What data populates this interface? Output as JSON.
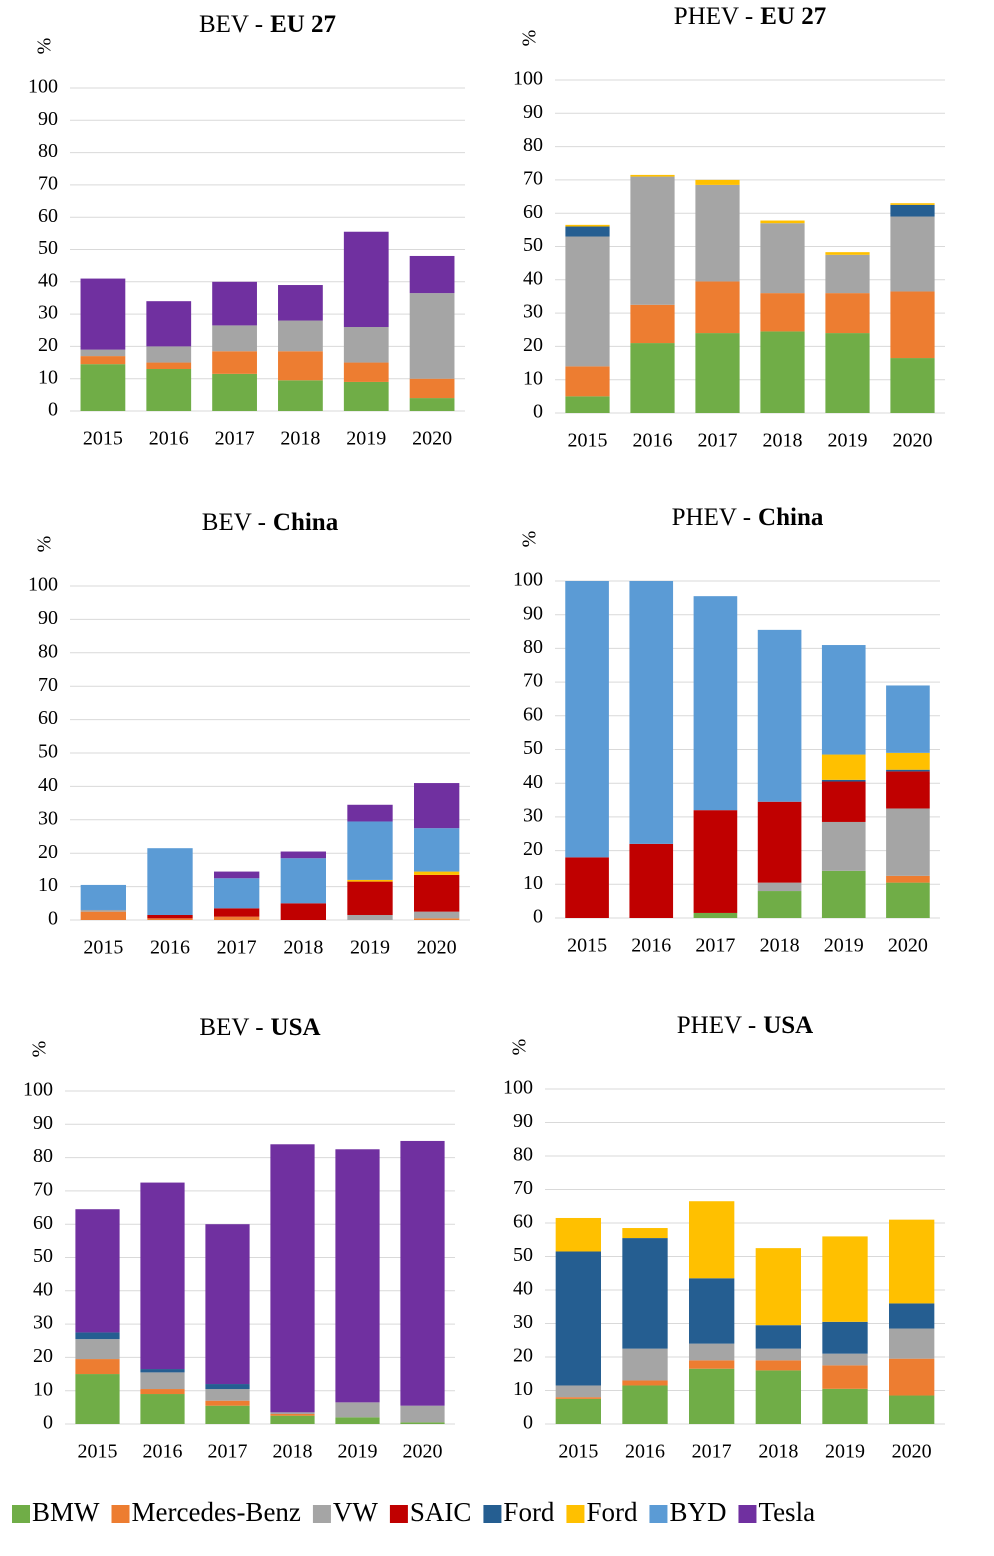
{
  "legend": {
    "entries": [
      {
        "name": "BMW",
        "color": "#70ad47"
      },
      {
        "name": "Mercedes-Benz",
        "color": "#ed7d31"
      },
      {
        "name": "VW",
        "color": "#a5a5a5"
      },
      {
        "name": "SAIC",
        "color": "#c00000"
      },
      {
        "name": "Ford",
        "color": "#255e91"
      },
      {
        "name": "Ford",
        "color": "#ffc000"
      },
      {
        "name": "BYD",
        "color": "#5b9bd5"
      },
      {
        "name": "Tesla",
        "color": "#7030a0"
      }
    ]
  },
  "chart_data": [
    {
      "type": "bar",
      "stacked": true,
      "title": [
        "BEV -",
        "EU 27"
      ],
      "y_label": "%",
      "categories": [
        "2015",
        "2016",
        "2017",
        "2018",
        "2019",
        "2020"
      ],
      "ylim": [
        0,
        100
      ],
      "yticks": [
        0,
        10,
        20,
        30,
        40,
        50,
        60,
        70,
        80,
        90,
        100
      ],
      "grid": true,
      "series": [
        {
          "values": [
            14.5,
            13,
            11.5,
            9.5,
            9,
            4
          ]
        },
        {
          "values": [
            2.5,
            2,
            7,
            9,
            6,
            6
          ]
        },
        {
          "values": [
            2,
            5,
            8,
            9.5,
            11,
            26.5
          ]
        },
        {
          "values": [
            0,
            0,
            0,
            0,
            0,
            0
          ]
        },
        {
          "values": [
            0,
            0,
            0,
            0,
            0,
            0
          ]
        },
        {
          "values": [
            0,
            0,
            0,
            0,
            0,
            0
          ]
        },
        {
          "values": [
            0,
            0,
            0,
            0,
            0,
            0
          ]
        },
        {
          "values": [
            22,
            14,
            13.5,
            11,
            29.5,
            11.5
          ]
        }
      ]
    },
    {
      "type": "bar",
      "stacked": true,
      "title": [
        "PHEV -",
        "EU 27"
      ],
      "y_label": "%",
      "categories": [
        "2015",
        "2016",
        "2017",
        "2018",
        "2019",
        "2020"
      ],
      "ylim": [
        0,
        100
      ],
      "yticks": [
        0,
        10,
        20,
        30,
        40,
        50,
        60,
        70,
        80,
        90,
        100
      ],
      "grid": true,
      "series": [
        {
          "values": [
            5,
            21,
            24,
            24.5,
            24,
            16.5
          ]
        },
        {
          "values": [
            9,
            11.5,
            15.5,
            11.5,
            12,
            20
          ]
        },
        {
          "values": [
            39,
            38.5,
            29,
            21,
            11.5,
            22.5
          ]
        },
        {
          "values": [
            0,
            0,
            0,
            0,
            0,
            0
          ]
        },
        {
          "values": [
            3,
            0,
            0,
            0,
            0,
            3.5
          ]
        },
        {
          "values": [
            0.5,
            0.5,
            1.5,
            0.8,
            0.8,
            0.5
          ]
        },
        {
          "values": [
            0,
            0,
            0,
            0,
            0,
            0
          ]
        },
        {
          "values": [
            0,
            0,
            0,
            0,
            0,
            0
          ]
        }
      ]
    },
    {
      "type": "bar",
      "stacked": true,
      "title": [
        "BEV -",
        "China"
      ],
      "y_label": "%",
      "categories": [
        "2015",
        "2016",
        "2017",
        "2018",
        "2019",
        "2020"
      ],
      "ylim": [
        0,
        100
      ],
      "yticks": [
        0,
        10,
        20,
        30,
        40,
        50,
        60,
        70,
        80,
        90,
        100
      ],
      "grid": true,
      "series": [
        {
          "values": [
            0,
            0,
            0,
            0,
            0,
            0
          ]
        },
        {
          "values": [
            2.5,
            0.5,
            1,
            0,
            0,
            0.5
          ]
        },
        {
          "values": [
            0.5,
            0,
            0,
            0,
            1.5,
            2
          ]
        },
        {
          "values": [
            0,
            1,
            2.5,
            5,
            10,
            11
          ]
        },
        {
          "values": [
            0,
            0,
            0,
            0,
            0,
            0
          ]
        },
        {
          "values": [
            0,
            0,
            0,
            0,
            0.5,
            1
          ]
        },
        {
          "values": [
            7.5,
            20,
            9,
            13.5,
            17.5,
            13
          ]
        },
        {
          "values": [
            0,
            0,
            2,
            2,
            5,
            13.5
          ]
        }
      ]
    },
    {
      "type": "bar",
      "stacked": true,
      "title": [
        "PHEV -",
        "China"
      ],
      "y_label": "%",
      "categories": [
        "2015",
        "2016",
        "2017",
        "2018",
        "2019",
        "2020"
      ],
      "ylim": [
        0,
        100
      ],
      "yticks": [
        0,
        10,
        20,
        30,
        40,
        50,
        60,
        70,
        80,
        90,
        100
      ],
      "grid": true,
      "series": [
        {
          "values": [
            0,
            0,
            1.5,
            8,
            14,
            10.5
          ]
        },
        {
          "values": [
            0,
            0,
            0,
            0,
            0,
            2
          ]
        },
        {
          "values": [
            0,
            0,
            0,
            2.5,
            14.5,
            20
          ]
        },
        {
          "values": [
            18,
            22,
            30.5,
            24,
            12,
            11
          ]
        },
        {
          "values": [
            0,
            0,
            0,
            0,
            0.5,
            0.5
          ]
        },
        {
          "values": [
            0,
            0,
            0,
            0,
            7.5,
            5
          ]
        },
        {
          "values": [
            82,
            78,
            63.5,
            51,
            32.5,
            20
          ]
        },
        {
          "values": [
            0,
            0,
            0,
            0,
            0,
            0
          ]
        }
      ]
    },
    {
      "type": "bar",
      "stacked": true,
      "title": [
        "BEV -",
        "USA"
      ],
      "y_label": "%",
      "categories": [
        "2015",
        "2016",
        "2017",
        "2018",
        "2019",
        "2020"
      ],
      "ylim": [
        0,
        100
      ],
      "yticks": [
        0,
        10,
        20,
        30,
        40,
        50,
        60,
        70,
        80,
        90,
        100
      ],
      "grid": true,
      "series": [
        {
          "values": [
            15,
            9,
            5.5,
            2.5,
            2,
            0.5
          ]
        },
        {
          "values": [
            4.5,
            1.5,
            1.5,
            0.5,
            0,
            0
          ]
        },
        {
          "values": [
            6,
            5,
            3.5,
            0.5,
            4.5,
            5
          ]
        },
        {
          "values": [
            0,
            0,
            0,
            0,
            0,
            0
          ]
        },
        {
          "values": [
            2,
            1,
            1.5,
            0,
            0,
            0
          ]
        },
        {
          "values": [
            0,
            0,
            0,
            0,
            0,
            0
          ]
        },
        {
          "values": [
            0,
            0,
            0,
            0,
            0,
            0
          ]
        },
        {
          "values": [
            37,
            56,
            48,
            80.5,
            76,
            79.5
          ]
        }
      ]
    },
    {
      "type": "bar",
      "stacked": true,
      "title": [
        "PHEV -",
        "USA"
      ],
      "y_label": "%",
      "categories": [
        "2015",
        "2016",
        "2017",
        "2018",
        "2019",
        "2020"
      ],
      "ylim": [
        0,
        100
      ],
      "yticks": [
        0,
        10,
        20,
        30,
        40,
        50,
        60,
        70,
        80,
        90,
        100
      ],
      "grid": true,
      "series": [
        {
          "values": [
            7.5,
            11.5,
            16.5,
            16,
            10.5,
            8.5
          ]
        },
        {
          "values": [
            0.5,
            1.5,
            2.5,
            3,
            7,
            11
          ]
        },
        {
          "values": [
            3.5,
            9.5,
            5,
            3.5,
            3.5,
            9
          ]
        },
        {
          "values": [
            0,
            0,
            0,
            0,
            0,
            0
          ]
        },
        {
          "values": [
            40,
            33,
            19.5,
            7,
            9.5,
            7.5
          ]
        },
        {
          "values": [
            10,
            3,
            23,
            23,
            25.5,
            25
          ]
        },
        {
          "values": [
            0,
            0,
            0,
            0,
            0,
            0
          ]
        },
        {
          "values": [
            0,
            0,
            0,
            0,
            0,
            0
          ]
        }
      ]
    }
  ]
}
